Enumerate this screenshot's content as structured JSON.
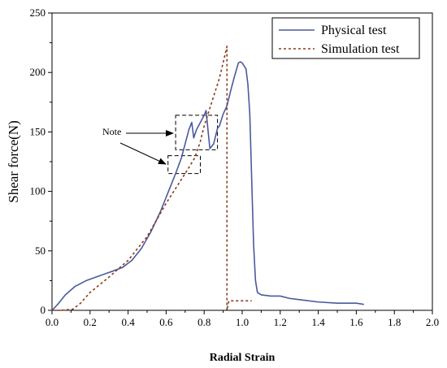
{
  "chart_data": {
    "type": "line",
    "xlabel": "Radial Strain",
    "ylabel": "Shear force(N)",
    "xlim": [
      0.0,
      2.0
    ],
    "ylim": [
      0,
      250
    ],
    "xticks": [
      "0.0",
      "0.2",
      "0.4",
      "0.6",
      "0.8",
      "1.0",
      "1.2",
      "1.4",
      "1.6",
      "1.8",
      "2.0"
    ],
    "yticks": [
      "0",
      "50",
      "100",
      "150",
      "200",
      "250"
    ],
    "grid": false,
    "legend_position": "top-right",
    "series": [
      {
        "name": "Physical test",
        "color": "#4a5a9c",
        "style": "solid",
        "points": [
          [
            0.0,
            0
          ],
          [
            0.03,
            5
          ],
          [
            0.07,
            13
          ],
          [
            0.12,
            20
          ],
          [
            0.18,
            25
          ],
          [
            0.25,
            29
          ],
          [
            0.32,
            33
          ],
          [
            0.37,
            36
          ],
          [
            0.42,
            42
          ],
          [
            0.47,
            52
          ],
          [
            0.52,
            66
          ],
          [
            0.57,
            83
          ],
          [
            0.62,
            103
          ],
          [
            0.65,
            115
          ],
          [
            0.68,
            128
          ],
          [
            0.7,
            140
          ],
          [
            0.72,
            152
          ],
          [
            0.735,
            158
          ],
          [
            0.745,
            145
          ],
          [
            0.76,
            152
          ],
          [
            0.78,
            158
          ],
          [
            0.8,
            164
          ],
          [
            0.81,
            168
          ],
          [
            0.83,
            136
          ],
          [
            0.85,
            140
          ],
          [
            0.87,
            153
          ],
          [
            0.88,
            155
          ],
          [
            0.9,
            165
          ],
          [
            0.92,
            172
          ],
          [
            0.94,
            185
          ],
          [
            0.96,
            197
          ],
          [
            0.98,
            208
          ],
          [
            0.99,
            209
          ],
          [
            1.0,
            208
          ],
          [
            1.02,
            203
          ],
          [
            1.03,
            190
          ],
          [
            1.04,
            165
          ],
          [
            1.05,
            110
          ],
          [
            1.06,
            55
          ],
          [
            1.07,
            25
          ],
          [
            1.08,
            15
          ],
          [
            1.1,
            13
          ],
          [
            1.15,
            12
          ],
          [
            1.2,
            12
          ],
          [
            1.25,
            10
          ],
          [
            1.3,
            9
          ],
          [
            1.4,
            7
          ],
          [
            1.5,
            6
          ],
          [
            1.6,
            6
          ],
          [
            1.64,
            5
          ]
        ]
      },
      {
        "name": "Simulation test",
        "color": "#8b3a1a",
        "style": "dashed",
        "points": [
          [
            0.0,
            0
          ],
          [
            0.05,
            0
          ],
          [
            0.11,
            1
          ],
          [
            0.15,
            6
          ],
          [
            0.2,
            15
          ],
          [
            0.3,
            28
          ],
          [
            0.4,
            42
          ],
          [
            0.5,
            62
          ],
          [
            0.6,
            90
          ],
          [
            0.7,
            115
          ],
          [
            0.75,
            128
          ],
          [
            0.78,
            142
          ],
          [
            0.8,
            155
          ],
          [
            0.84,
            175
          ],
          [
            0.88,
            195
          ],
          [
            0.91,
            215
          ],
          [
            0.92,
            222
          ],
          [
            0.92,
            0
          ],
          [
            0.93,
            8
          ],
          [
            1.05,
            8
          ]
        ]
      }
    ],
    "annotations": [
      {
        "text": "Note",
        "target_boxes": [
          {
            "x": [
              0.65,
              0.87
            ],
            "y": [
              135,
              164
            ]
          },
          {
            "x": [
              0.61,
              0.78
            ],
            "y": [
              115,
              130
            ]
          }
        ]
      }
    ]
  }
}
